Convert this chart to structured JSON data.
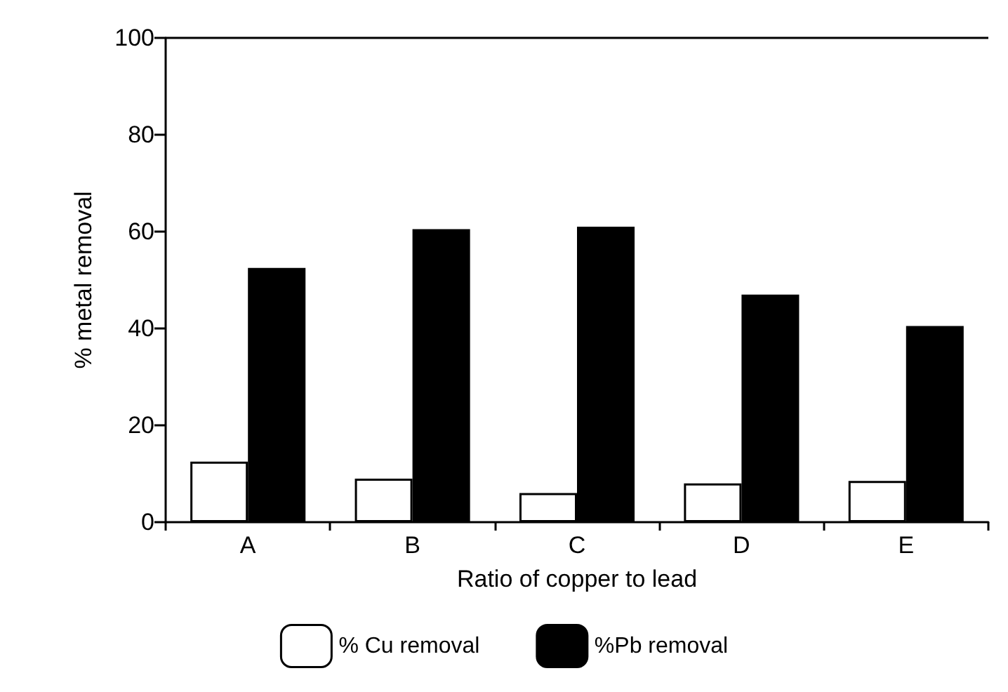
{
  "chart_data": {
    "type": "bar",
    "xlabel": "Ratio of copper to lead",
    "ylabel": "% metal removal",
    "categories": [
      "A",
      "B",
      "C",
      "D",
      "E"
    ],
    "series": [
      {
        "name": "% Cu removal",
        "color": "#ffffff",
        "values": [
          12.5,
          9,
          6,
          8,
          8.5
        ]
      },
      {
        "name": "%Pb removal",
        "color": "#000000",
        "values": [
          52.5,
          60.5,
          61,
          47,
          40.5
        ]
      }
    ],
    "ylim": [
      0,
      100
    ],
    "yticks": [
      0,
      20,
      40,
      60,
      80,
      100
    ],
    "grid": false,
    "legend": "bottom"
  }
}
